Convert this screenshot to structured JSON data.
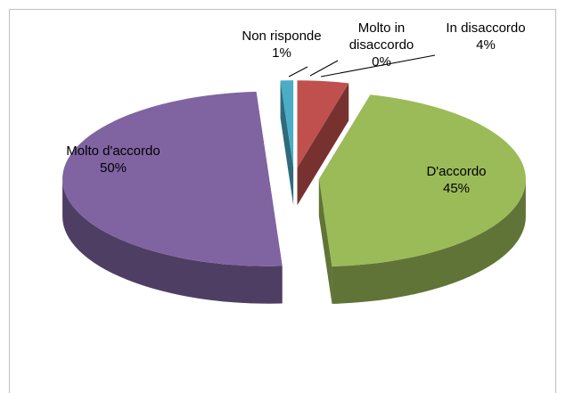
{
  "chart_data": {
    "type": "pie",
    "categories": [
      "Molto in disaccordo",
      "In disaccordo",
      "D'accordo",
      "Molto d'accordo",
      "Non risponde"
    ],
    "values": [
      0,
      4,
      45,
      50,
      1
    ],
    "value_labels": [
      "0%",
      "4%",
      "45%",
      "50%",
      "1%"
    ],
    "colors": [
      "#1f497d",
      "#c0504d",
      "#9bbb59",
      "#8064a2",
      "#4bacc6"
    ]
  }
}
